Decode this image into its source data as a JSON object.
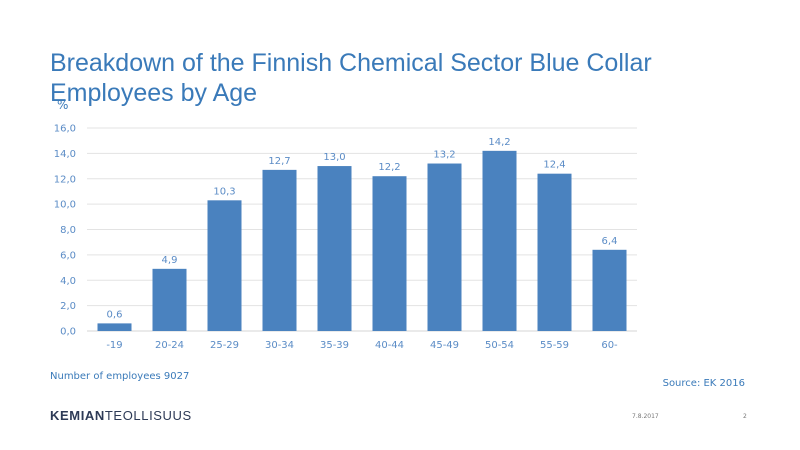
{
  "slide": {
    "title": "Breakdown of the Finnish Chemical Sector Blue Collar Employees by Age",
    "note_left": "Number of employees 9027",
    "source": "Source: EK 2016",
    "logo_bold": "KEMIAN",
    "logo_light": "TEOLLISUUS",
    "date": "7.8.2017",
    "page": "2"
  },
  "chart_data": {
    "type": "bar",
    "ylabel": "%",
    "categories": [
      "-19",
      "20-24",
      "25-29",
      "30-34",
      "35-39",
      "40-44",
      "45-49",
      "50-54",
      "55-59",
      "60-"
    ],
    "values": [
      0.6,
      4.9,
      10.3,
      12.7,
      13.0,
      12.2,
      13.2,
      14.2,
      12.4,
      6.4
    ],
    "value_labels": [
      "0,6",
      "4,9",
      "10,3",
      "12,7",
      "13,0",
      "12,2",
      "13,2",
      "14,2",
      "12,4",
      "6,4"
    ],
    "ylim": [
      0,
      16
    ],
    "yticks": [
      0,
      2,
      4,
      6,
      8,
      10,
      12,
      14,
      16
    ],
    "ytick_labels": [
      "0,0",
      "2,0",
      "4,0",
      "6,0",
      "8,0",
      "10,0",
      "12,0",
      "14,0",
      "16,0"
    ],
    "grid": true,
    "colors": {
      "bar": "#4a82bf",
      "axis_text": "#5b8cc6",
      "grid": "#e3e3e3"
    }
  }
}
